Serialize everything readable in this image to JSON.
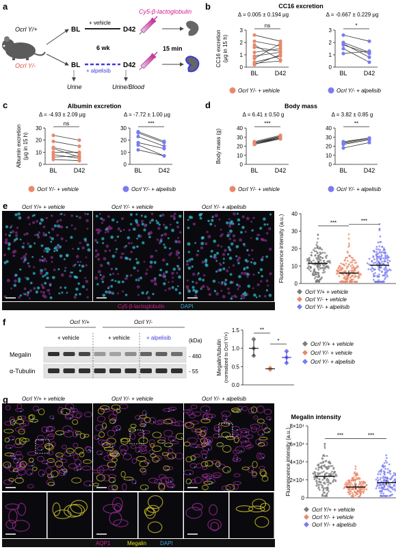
{
  "panel_labels": {
    "a": "a",
    "b": "b",
    "c": "c",
    "d": "d",
    "e": "e",
    "f": "f",
    "g": "g"
  },
  "colors": {
    "vehicle": "#e8896a",
    "alpelisib": "#7a7cf0",
    "wt": "#7c7c7c",
    "magenta": "#d21f8f",
    "blue_text": "#3d3ae0",
    "cyan": "#3aa7d8"
  },
  "panel_a": {
    "ocrl_wt": "Ocrl Y/+",
    "ocrl_ko": "Ocrl Y/-",
    "bl_top": "BL",
    "bl_bottom": "BL",
    "d42_top": "D42",
    "d42_bottom": "D42",
    "vehicle": "+ vehicle",
    "alpelisib": "+ alpelisib",
    "six_wk": "6 wk",
    "tracer": "Cy5-β-lactoglobulin",
    "fifteen_min": "15 min",
    "urine": "Urine",
    "urine_blood": "Urine/Blood"
  },
  "panel_b": {
    "title": "CC16 excretion",
    "delta_vehicle": "Δ = 0.005 ± 0.194 μg",
    "delta_alpelisib": "Δ = -0.667 ± 0.229 μg",
    "ylabel": "CC16 excretion",
    "ylabel2": "(μg in 15 h)",
    "sig_vehicle": "ns",
    "sig_alpelisib": "*",
    "yticks": [
      "0",
      "1",
      "2",
      "3"
    ],
    "legend_vehicle": "Ocrl Y/- + vehicle",
    "legend_alpelisib": "Ocrl Y/- + alpelisib"
  },
  "panel_c": {
    "title": "Albumin excretion",
    "delta_vehicle": "Δ = -4.93 ± 2.09 μg",
    "delta_alpelisib": "Δ = -7.72 ± 1.00 μg",
    "ylabel": "Albumin excretion",
    "ylabel2": "(μg in 15 h)",
    "sig_vehicle": "ns",
    "sig_alpelisib": "***",
    "yticks": [
      "0",
      "10",
      "20",
      "30"
    ],
    "legend_vehicle": "Ocrl Y/- + vehicle",
    "legend_alpelisib": "Ocrl Y/- + alpelisib"
  },
  "panel_d": {
    "title": "Body mass",
    "delta_vehicle": "Δ = 6.41 ± 0.50 g",
    "delta_alpelisib": "Δ = 3.82 ± 0.85 g",
    "ylabel": "Body mass (g)",
    "sig_vehicle": "***",
    "sig_alpelisib": "**",
    "yticks": [
      "0",
      "10",
      "20",
      "30",
      "40"
    ],
    "legend_vehicle": "Ocrl Y/- + vehicle",
    "legend_alpelisib": "Ocrl Y/- + alpelisib"
  },
  "xticks": [
    "BL",
    "D42"
  ],
  "panel_e": {
    "img_titles": [
      "Ocrl Y/+ + vehicle",
      "Ocrl Y/- + vehicle",
      "Ocrl Y/- + alpelisib"
    ],
    "stain_a": "Cy5-β-lactoglobulin",
    "stain_b": "DAPI",
    "ylabel": "Fluorescence intensity (a.u.)",
    "yticks": [
      "0",
      "10",
      "20",
      "30",
      "40"
    ],
    "sig1": "***",
    "sig2": "***",
    "legend": [
      "Ocrl Y/+ + vehicle",
      "Ocrl Y/- + vehicle",
      "Ocrl Y/- + alpelisib"
    ]
  },
  "panel_f": {
    "group_wt": "Ocrl Y/+",
    "group_ko": "Ocrl Y/-",
    "lane_vehicle_wt": "+ vehicle",
    "lane_vehicle_ko": "+ vehicle",
    "lane_alpelisib": "+ alpelisib",
    "kda": "(kDa)",
    "megalin": "Megalin",
    "tubulin": "α-Tubulin",
    "mw_460": "- 460",
    "mw_55": "- 55",
    "ylabel": "Megalin/tubulin",
    "ylabel2": "(normalized to Ocrl Y/+)",
    "yticks": [
      "0.0",
      "0.5",
      "1.0",
      "1.5"
    ],
    "sig1": "**",
    "sig2": "*",
    "legend": [
      "Ocrl Y/+ + vehicle",
      "Ocrl Y/- + vehicle",
      "Ocrl Y/- + alpelisib"
    ]
  },
  "panel_g": {
    "img_titles": [
      "Ocrl Y/+ + vehicle",
      "Ocrl Y/- + vehicle",
      "Ocrl Y/- + alpelisib"
    ],
    "stain_a": "AQP1",
    "stain_b": "Megalin",
    "stain_c": "DAPI",
    "chart_title": "Megalin intensity",
    "ylabel": "Fluorescence intensity (a.u.)",
    "yticks": [
      "0",
      "2×10⁴",
      "4×10⁴",
      "6×10⁴",
      "8×10⁴"
    ],
    "sig1": "***",
    "sig2": "***",
    "legend": [
      "Ocrl Y/+ + vehicle",
      "Ocrl Y/- + vehicle",
      "Ocrl Y/- + alpelisib"
    ]
  },
  "chart_data": [
    {
      "type": "line",
      "title": "CC16 excretion",
      "ylabel": "CC16 excretion (μg in 15 h)",
      "categories": [
        "BL",
        "D42"
      ],
      "ylim": [
        0,
        3
      ],
      "series": [
        {
          "name": "Ocrl Y/- + vehicle",
          "pairs": [
            [
              2.6,
              2.1
            ],
            [
              2.1,
              1.7
            ],
            [
              1.8,
              0.6
            ],
            [
              1.6,
              1.3
            ],
            [
              1.2,
              1.5
            ],
            [
              0.9,
              1.2
            ],
            [
              0.7,
              1.9
            ],
            [
              0.4,
              0.9
            ],
            [
              0.3,
              0.5
            ],
            [
              0.2,
              1.0
            ]
          ]
        },
        {
          "name": "Ocrl Y/- + alpelisib",
          "pairs": [
            [
              2.6,
              2.1
            ],
            [
              2.0,
              1.2
            ],
            [
              1.9,
              0.8
            ],
            [
              1.8,
              1.1
            ],
            [
              1.5,
              0.4
            ],
            [
              1.1,
              1.3
            ]
          ]
        }
      ]
    },
    {
      "type": "line",
      "title": "Albumin excretion",
      "ylabel": "Albumin excretion (μg in 15 h)",
      "categories": [
        "BL",
        "D42"
      ],
      "ylim": [
        0,
        30
      ],
      "series": [
        {
          "name": "Ocrl Y/- + vehicle",
          "pairs": [
            [
              24,
              20
            ],
            [
              19,
              15
            ],
            [
              14,
              9
            ],
            [
              13,
              6
            ],
            [
              10,
              10
            ],
            [
              8,
              5
            ],
            [
              6,
              7
            ],
            [
              4,
              3
            ]
          ]
        },
        {
          "name": "Ocrl Y/- + alpelisib",
          "pairs": [
            [
              27,
              19
            ],
            [
              26,
              18
            ],
            [
              23,
              15
            ],
            [
              18,
              13
            ],
            [
              16,
              7
            ],
            [
              12,
              7
            ]
          ]
        }
      ]
    },
    {
      "type": "line",
      "title": "Body mass",
      "ylabel": "Body mass (g)",
      "categories": [
        "BL",
        "D42"
      ],
      "ylim": [
        0,
        40
      ],
      "series": [
        {
          "name": "Ocrl Y/- + vehicle",
          "pairs": [
            [
              25,
              32
            ],
            [
              24,
              31
            ],
            [
              24,
              30
            ],
            [
              23,
              30
            ],
            [
              23,
              29
            ],
            [
              22,
              29
            ],
            [
              22,
              28
            ]
          ]
        },
        {
          "name": "Ocrl Y/- + alpelisib",
          "pairs": [
            [
              25,
              29
            ],
            [
              24,
              29
            ],
            [
              23,
              28
            ],
            [
              22,
              27
            ],
            [
              18,
              24
            ]
          ]
        }
      ]
    },
    {
      "type": "scatter",
      "ylabel": "Fluorescence intensity (a.u.)",
      "categories": [
        "Ocrl Y/+ + vehicle",
        "Ocrl Y/- + vehicle",
        "Ocrl Y/- + alpelisib"
      ],
      "ylim": [
        0,
        40
      ],
      "mean": [
        11.5,
        6,
        10.5
      ],
      "sem": [
        0.6,
        0.3,
        0.6
      ],
      "spread": [
        [
          1,
          28
        ],
        [
          1,
          30
        ],
        [
          1,
          34
        ]
      ]
    },
    {
      "type": "scatter",
      "ylabel": "Megalin/tubulin (normalized to Ocrl Y/+)",
      "categories": [
        "Ocrl Y/+ + vehicle",
        "Ocrl Y/- + vehicle",
        "Ocrl Y/- + alpelisib"
      ],
      "ylim": [
        0,
        1.5
      ],
      "points": [
        [
          1.25,
          1.0,
          0.8
        ],
        [
          0.42,
          0.44,
          0.46
        ],
        [
          0.92,
          0.75,
          0.6
        ]
      ],
      "mean": [
        1.0,
        0.44,
        0.75
      ],
      "sd": [
        0.22,
        0.02,
        0.16
      ]
    },
    {
      "type": "scatter",
      "title": "Megalin intensity",
      "ylabel": "Fluorescence intensity (a.u.)",
      "categories": [
        "Ocrl Y/+ + vehicle",
        "Ocrl Y/- + vehicle",
        "Ocrl Y/- + alpelisib"
      ],
      "ylim": [
        0,
        80000
      ],
      "mean": [
        24000,
        12000,
        17000
      ],
      "spread": [
        [
          2000,
          60000
        ],
        [
          1000,
          35000
        ],
        [
          2000,
          60000
        ]
      ]
    }
  ]
}
